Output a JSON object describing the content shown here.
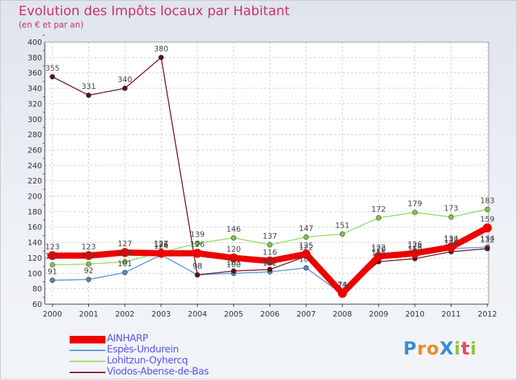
{
  "title": "Evolution des Impôts locaux par Habitant",
  "subtitle": "(en € et par an)",
  "logo": "ProXiti",
  "chart_data": {
    "type": "line",
    "title": "Evolution des Impôts locaux par Habitant",
    "subtitle": "(en € et par an)",
    "xlabel": "",
    "ylabel": "",
    "ylim": [
      60,
      400
    ],
    "ytick_step": 20,
    "grid": true,
    "categories": [
      "2000",
      "2001",
      "2002",
      "2003",
      "2004",
      "2005",
      "2006",
      "2007",
      "2008",
      "2009",
      "2010",
      "2011",
      "2012"
    ],
    "series": [
      {
        "name": "Espès-Undurein",
        "color": "#5b9bd5",
        "marker_color": "#4f86c6",
        "values": [
          91,
          92,
          101,
          124,
          98,
          100,
          102,
          107,
          73,
          120,
          124,
          132,
          134
        ]
      },
      {
        "name": "Lohitzun-Oyhercq",
        "color": "#99dd66",
        "marker_color": "#7ac943",
        "values": [
          111,
          112,
          115,
          127,
          139,
          146,
          137,
          147,
          151,
          172,
          179,
          173,
          183
        ]
      },
      {
        "name": "Viodos-Abense-de-Bas",
        "color": "#7a1f2b",
        "marker_color": "#5a1418",
        "values": [
          355,
          331,
          340,
          380,
          98,
          103,
          105,
          122,
          74,
          115,
          119,
          128,
          132
        ]
      },
      {
        "name": "AINHARP",
        "color": "#ee0000",
        "marker_color": "#ee0000",
        "values": [
          123,
          123,
          127,
          126,
          126,
          120,
          116,
          125,
          74,
          122,
          126,
          134,
          159
        ]
      }
    ],
    "value_labels": [
      [
        "91",
        "92",
        "101",
        "124",
        "98",
        "100",
        "102",
        "107",
        "73",
        "120",
        "124",
        "132",
        "134"
      ],
      [
        "111",
        "112",
        "115",
        "127",
        "139",
        "146",
        "137",
        "147",
        "151",
        "172",
        "179",
        "173",
        "183"
      ],
      [
        "355",
        "331",
        "340",
        "380",
        "98",
        "103",
        "105",
        "122",
        "74",
        "115",
        "119",
        "128",
        "132"
      ],
      [
        "123",
        "123",
        "127",
        "126",
        "126",
        "120",
        "116",
        "125",
        "74",
        "122",
        "126",
        "134",
        "159"
      ]
    ]
  },
  "legend": [
    {
      "label": "AINHARP",
      "color": "#ee0000"
    },
    {
      "label": "Espès-Undurein",
      "color": "#5b9bd5"
    },
    {
      "label": "Lohitzun-Oyhercq",
      "color": "#99dd66"
    },
    {
      "label": "Viodos-Abense-de-Bas",
      "color": "#7a1f2b"
    }
  ]
}
